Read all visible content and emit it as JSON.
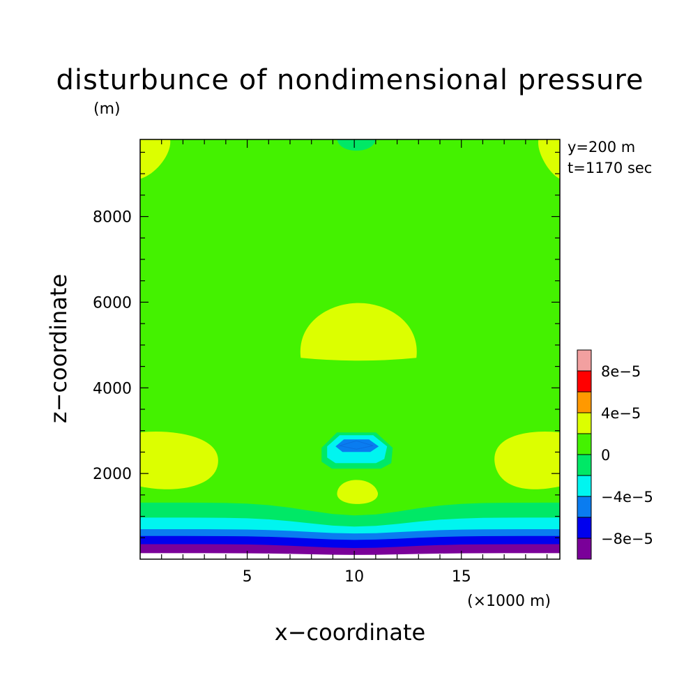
{
  "chart_data": {
    "type": "heatmap",
    "title": "disturbunce of nondimensional pressure",
    "xlabel": "x−coordinate",
    "ylabel": "z−coordinate",
    "x_unit_label": "(×1000 m)",
    "y_unit_label": "(m)",
    "annotations": [
      "y=200 m",
      "t=1170 sec"
    ],
    "xlim": [
      0,
      19.6
    ],
    "ylim": [
      0,
      9800
    ],
    "x_ticks": [
      5,
      10,
      15
    ],
    "x_tick_labels": [
      "5",
      "10",
      "15"
    ],
    "y_ticks": [
      2000,
      4000,
      6000,
      8000
    ],
    "y_tick_labels": [
      "2000",
      "4000",
      "6000",
      "8000"
    ],
    "colorbar": {
      "levels": [
        {
          "range": [
            -0.0001,
            -8e-05
          ],
          "color": "#7a0099"
        },
        {
          "range": [
            -8e-05,
            -6e-05
          ],
          "color": "#0000ee"
        },
        {
          "range": [
            -6e-05,
            -4e-05
          ],
          "color": "#0a7cf0"
        },
        {
          "range": [
            -4e-05,
            -2e-05
          ],
          "color": "#00f5f0"
        },
        {
          "range": [
            -2e-05,
            0
          ],
          "color": "#00e866"
        },
        {
          "range": [
            0,
            2e-05
          ],
          "color": "#44f200"
        },
        {
          "range": [
            2e-05,
            4e-05
          ],
          "color": "#dcff00"
        },
        {
          "range": [
            4e-05,
            6e-05
          ],
          "color": "#ff9900"
        },
        {
          "range": [
            6e-05,
            8e-05
          ],
          "color": "#ff0000"
        },
        {
          "range": [
            8e-05,
            0.0001
          ],
          "color": "#f2a0a0"
        }
      ],
      "tick_values": [
        -8e-05,
        -4e-05,
        0,
        4e-05,
        8e-05
      ],
      "tick_labels": [
        "−8e−5",
        "−4e−5",
        "0",
        "4e−5",
        "8e−5"
      ]
    },
    "regions": [
      {
        "level": 2e-05,
        "desc": "dome centered x=10, z 4700-6000",
        "cx": 10.2,
        "z0": 4700,
        "rx": 2.7,
        "top": 5980
      },
      {
        "level": 2e-05,
        "desc": "left lobe",
        "x0": 0,
        "x1": 3.6,
        "z0": 1580,
        "z1": 2960
      },
      {
        "level": 2e-05,
        "desc": "right lobe",
        "x0": 16.6,
        "x1": 19.6,
        "z0": 1580,
        "z1": 2960
      },
      {
        "level": 2e-05,
        "desc": "top-left corner",
        "x0": 0,
        "x1": 1.4,
        "z0": 8900,
        "z1": 9800
      },
      {
        "level": 2e-05,
        "desc": "top-right corner",
        "x0": 18.6,
        "x1": 19.6,
        "z0": 8900,
        "z1": 9800
      },
      {
        "level": 2e-05,
        "desc": "lower center blob",
        "cx": 10.1,
        "z0": 1150,
        "z1": 2000
      },
      {
        "level": -1e-05,
        "desc": "top center patch",
        "cx": 10.1,
        "z0": 9350,
        "z1": 9800
      },
      {
        "level": -3e-05,
        "desc": "center anomaly outer",
        "cx": 10.1,
        "z": 2600
      },
      {
        "level": -5e-05,
        "desc": "center anomaly inner",
        "cx": 10.1,
        "z": 2600
      }
    ],
    "bottom_layers": [
      {
        "level": -1e-05,
        "z_edge": 1320,
        "z_center": 1020
      },
      {
        "level": -3e-05,
        "z_edge": 970,
        "z_center": 760
      },
      {
        "level": -5e-05,
        "z_edge": 700,
        "z_center": 600
      },
      {
        "level": -7e-05,
        "z_edge": 540,
        "z_center": 450
      },
      {
        "level": -9e-05,
        "z_edge": 350,
        "z_center": 260
      },
      {
        "level": 0,
        "z_edge": 140,
        "z_center": 100
      }
    ]
  }
}
